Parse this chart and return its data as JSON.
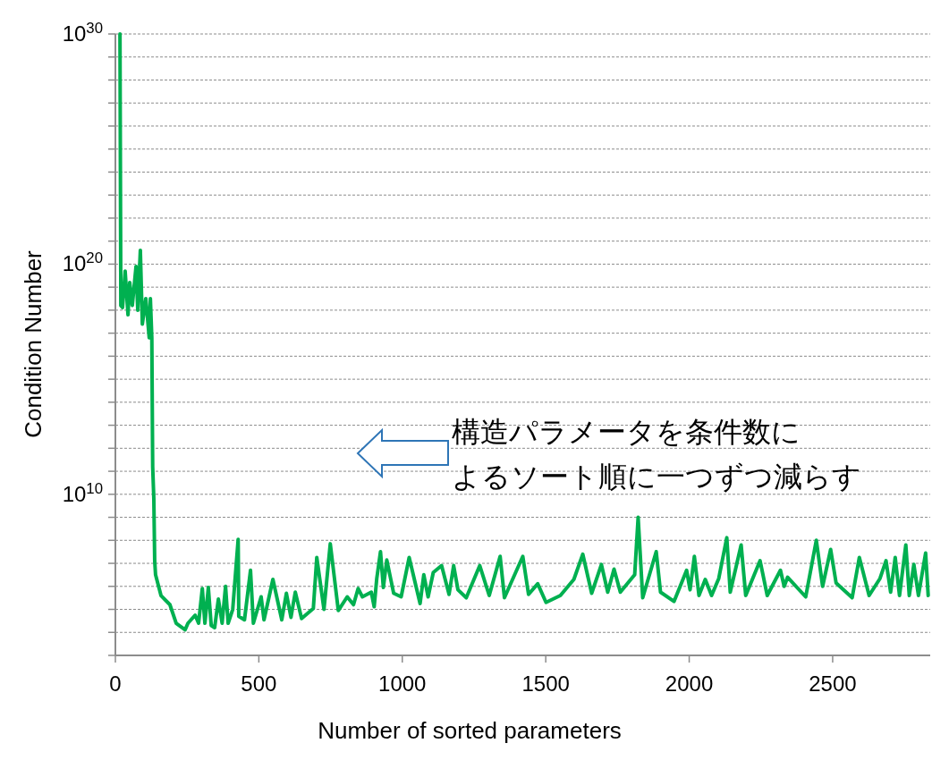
{
  "chart_data": {
    "type": "line",
    "xlabel": "Number of sorted parameters",
    "ylabel": "Condition Number",
    "annotations": [
      "構造パラメータを条件数に",
      "よるソート順に一つずつ減らす"
    ],
    "log": "y",
    "grid": "y",
    "marker": "none",
    "line_style": "solid",
    "xlim": [
      0,
      2840
    ],
    "xticks": [
      0,
      500,
      1000,
      1500,
      2000,
      2500
    ],
    "ylim": [
      1000.0,
      1e+30
    ],
    "yticks": [
      {
        "value": 1000.0,
        "label": null
      },
      {
        "value": 10000.0,
        "label": null
      },
      {
        "value": 100000.0,
        "label": null
      },
      {
        "value": 1000000.0,
        "label": null
      },
      {
        "value": 10000000.0,
        "label": null
      },
      {
        "value": 100000000.0,
        "label": null
      },
      {
        "value": 1000000000.0,
        "label": null
      },
      {
        "value": 10000000000.0,
        "label": "10$^{10}$"
      },
      {
        "value": 100000000000.0,
        "label": null
      },
      {
        "value": 1000000000000.0,
        "label": null
      },
      {
        "value": 10000000000000.0,
        "label": null
      },
      {
        "value": 100000000000000.0,
        "label": null
      },
      {
        "value": 1000000000000000.0,
        "label": null
      },
      {
        "value": 1e+16,
        "label": null
      },
      {
        "value": 1e+17,
        "label": null
      },
      {
        "value": 1e+18,
        "label": null
      },
      {
        "value": 1e+19,
        "label": null
      },
      {
        "value": 1e+20,
        "label": "10$^{20}$"
      },
      {
        "value": 1e+21,
        "label": null
      },
      {
        "value": 1e+22,
        "label": null
      },
      {
        "value": 1e+23,
        "label": null
      },
      {
        "value": 1e+24,
        "label": null
      },
      {
        "value": 1e+25,
        "label": null
      },
      {
        "value": 1e+26,
        "label": null
      },
      {
        "value": 1e+27,
        "label": null
      },
      {
        "value": 1e+28,
        "label": null
      },
      {
        "value": 1e+29,
        "label": null
      },
      {
        "value": 1e+30,
        "label": "10$^{30}$"
      }
    ],
    "series": [
      {
        "color": "#00b050",
        "x": [
          16,
          19,
          25,
          34,
          44,
          50,
          59,
          72,
          78,
          87,
          94,
          106,
          118,
          122,
          127,
          130,
          134,
          137,
          140,
          159,
          190,
          212,
          243,
          253,
          278,
          290,
          303,
          312,
          324,
          334,
          346,
          359,
          372,
          384,
          393,
          409,
          428,
          430,
          450,
          471,
          481,
          508,
          518,
          549,
          580,
          596,
          612,
          627,
          649,
          690,
          702,
          727,
          749,
          777,
          808,
          830,
          846,
          861,
          892,
          902,
          911,
          924,
          934,
          946,
          970,
          996,
          1024,
          1062,
          1075,
          1090,
          1108,
          1137,
          1163,
          1179,
          1194,
          1223,
          1270,
          1303,
          1341,
          1356,
          1420,
          1440,
          1472,
          1501,
          1551,
          1598,
          1629,
          1660,
          1694,
          1716,
          1738,
          1760,
          1810,
          1822,
          1838,
          1885,
          1900,
          1947,
          1991,
          2003,
          2018,
          2034,
          2056,
          2078,
          2103,
          2131,
          2143,
          2181,
          2197,
          2247,
          2272,
          2318,
          2331,
          2343,
          2406,
          2443,
          2465,
          2493,
          2512,
          2568,
          2593,
          2627,
          2665,
          2686,
          2702,
          2718,
          2733,
          2755,
          2767,
          2783,
          2799,
          2824,
          2833
        ],
        "values": [
          1e+30,
          1.6e+18,
          1.3e+18,
          5e+19,
          6.3e+17,
          1.6e+19,
          1.6e+18,
          8e+19,
          1e+18,
          4e+20,
          2.5e+17,
          3.2e+18,
          6.3e+16,
          3.2e+18,
          6.3e+16,
          160000000000.0,
          6300000000.0,
          13000000.0,
          3200000.0,
          400000.0,
          160000.0,
          25000.0,
          13000.0,
          25000.0,
          56000.0,
          25000.0,
          800000.0,
          25000.0,
          890000.0,
          20000.0,
          16000.0,
          280000.0,
          25000.0,
          1000000.0,
          25000.0,
          100000.0,
          110000000.0,
          50000.0,
          35000.0,
          5000000.0,
          25000.0,
          350000.0,
          35000.0,
          2000000.0,
          35000.0,
          500000.0,
          45000.0,
          560000.0,
          40000.0,
          110000.0,
          18000000.0,
          100000.0,
          71000000.0,
          89000.0,
          350000.0,
          160000.0,
          800000.0,
          350000.0,
          560000.0,
          130000.0,
          2200000.0,
          32000000.0,
          890000.0,
          14000000.0,
          500000.0,
          350000.0,
          18000000.0,
          180000.0,
          3200000.0,
          350000.0,
          4000000.0,
          8000000.0,
          450000.0,
          8000000.0,
          710000.0,
          320000.0,
          8000000.0,
          400000.0,
          20000000.0,
          320000.0,
          20000000.0,
          450000.0,
          1300000.0,
          200000.0,
          400000.0,
          2000000.0,
          25000000.0,
          500000.0,
          8900000.0,
          560000.0,
          5600000.0,
          560000.0,
          3200000.0,
          1000000000.0,
          320000.0,
          32000000.0,
          560000.0,
          220000.0,
          5000000.0,
          710000.0,
          20000000.0,
          400000.0,
          2000000.0,
          400000.0,
          2200000.0,
          130000000.0,
          560000.0,
          63000000.0,
          400000.0,
          13000000.0,
          400000.0,
          5000000.0,
          1000000.0,
          2500000.0,
          350000.0,
          100000000.0,
          1000000.0,
          40000000.0,
          1400000.0,
          320000.0,
          18000000.0,
          400000.0,
          2200000.0,
          13000000.0,
          560000.0,
          18000000.0,
          400000.0,
          63000000.0,
          400000.0,
          8900000.0,
          400000.0,
          28000000.0,
          400000.0
        ]
      }
    ]
  }
}
